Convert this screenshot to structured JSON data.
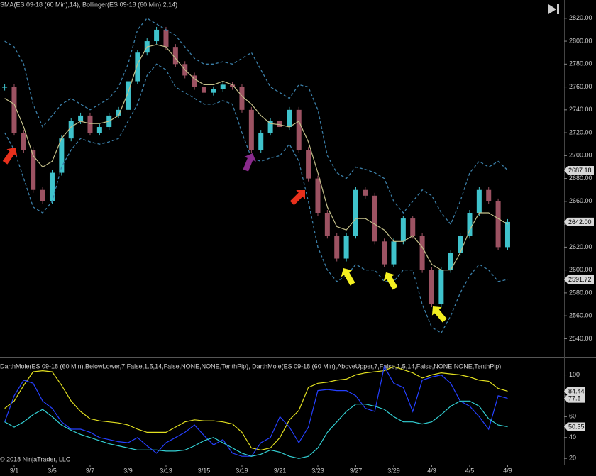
{
  "chart_data": [
    {
      "type": "candlestick",
      "title": "SMA(ES 09-18 (60 Min),14), Bollinger(ES 09-18 (60 Min),2,14)",
      "ylim": [
        2526,
        2836
      ],
      "yticks": [
        {
          "value": 2540,
          "label": "2540.00"
        },
        {
          "value": 2560,
          "label": "2560.00"
        },
        {
          "value": 2580,
          "label": "2580.00"
        },
        {
          "value": 2600,
          "label": "2600.00"
        },
        {
          "value": 2620,
          "label": "2620.00"
        },
        {
          "value": 2640,
          "label": "2640.00"
        },
        {
          "value": 2660,
          "label": "2660.00"
        },
        {
          "value": 2680,
          "label": "2680.00"
        },
        {
          "value": 2700,
          "label": "2700.00"
        },
        {
          "value": 2720,
          "label": "2720.00"
        },
        {
          "value": 2740,
          "label": "2740.00"
        },
        {
          "value": 2760,
          "label": "2760.00"
        },
        {
          "value": 2780,
          "label": "2780.00"
        },
        {
          "value": 2800,
          "label": "2800.00"
        },
        {
          "value": 2820,
          "label": "2820.00"
        }
      ],
      "series": [
        {
          "style": "candle",
          "color": "#3fc3cc",
          "down_color": "#9c5262",
          "values": [
            2760,
            2720,
            2705,
            2670,
            2660,
            2685,
            2715,
            2730,
            2735,
            2720,
            2725,
            2735,
            2740,
            2765,
            2790,
            2800,
            2810,
            2795,
            2780,
            2770,
            2760,
            2755,
            2758,
            2762,
            2760,
            2740,
            2705,
            2720,
            2730,
            2725,
            2740,
            2705,
            2680,
            2650,
            2630,
            2610,
            2630,
            2670,
            2665,
            2625,
            2605,
            2625,
            2645,
            2630,
            2600,
            2570,
            2600,
            2615,
            2630,
            2650,
            2670,
            2660,
            2620,
            2642
          ]
        },
        {
          "style": "line",
          "color": "#c4c08a",
          "values": [
            2750,
            2745,
            2725,
            2700,
            2690,
            2695,
            2715,
            2725,
            2730,
            2728,
            2728,
            2730,
            2735,
            2755,
            2780,
            2795,
            2797,
            2795,
            2785,
            2775,
            2767,
            2762,
            2762,
            2765,
            2762,
            2752,
            2745,
            2735,
            2728,
            2727,
            2725,
            2730,
            2712,
            2685,
            2655,
            2638,
            2635,
            2645,
            2645,
            2640,
            2635,
            2625,
            2625,
            2630,
            2620,
            2605,
            2600,
            2600,
            2615,
            2635,
            2650,
            2650,
            2645,
            2640
          ]
        },
        {
          "style": "dashed",
          "color": "#3b7fa8",
          "values": [
            2800,
            2795,
            2780,
            2745,
            2725,
            2735,
            2745,
            2750,
            2745,
            2740,
            2745,
            2750,
            2760,
            2780,
            2810,
            2820,
            2815,
            2810,
            2805,
            2795,
            2785,
            2780,
            2780,
            2782,
            2780,
            2785,
            2790,
            2775,
            2760,
            2755,
            2750,
            2762,
            2760,
            2740,
            2700,
            2685,
            2680,
            2690,
            2688,
            2685,
            2680,
            2660,
            2650,
            2660,
            2670,
            2665,
            2650,
            2640,
            2660,
            2685,
            2695,
            2690,
            2695,
            2687.18
          ]
        },
        {
          "style": "dashed",
          "color": "#3b7fa8",
          "values": [
            2720,
            2705,
            2680,
            2655,
            2650,
            2660,
            2690,
            2705,
            2715,
            2712,
            2710,
            2712,
            2715,
            2730,
            2745,
            2770,
            2780,
            2775,
            2760,
            2755,
            2750,
            2745,
            2745,
            2748,
            2745,
            2720,
            2698,
            2695,
            2698,
            2700,
            2710,
            2695,
            2660,
            2620,
            2600,
            2590,
            2595,
            2605,
            2600,
            2600,
            2590,
            2590,
            2600,
            2600,
            2570,
            2550,
            2545,
            2560,
            2580,
            2595,
            2605,
            2600,
            2590,
            2591.72
          ]
        }
      ],
      "price_markers": [
        {
          "value": 2687.18,
          "label": "2687.18"
        },
        {
          "value": 2642,
          "label": "2642.00"
        },
        {
          "value": 2591.72,
          "label": "2591.72"
        }
      ]
    },
    {
      "type": "line",
      "title": "DarthMole(ES 09-18 (60 Min),BelowLower,7,False,1.5,14,False,NONE,NONE,TenthPip), DarthMole(ES 09-18 (60 Min),AboveUpper,7,False,1.5,14,False,NONE,NONE,TenthPip)",
      "annotations": [
        "© 2018 NinjaTrader, LLC"
      ],
      "categories": [
        null,
        "3/1",
        null,
        null,
        null,
        "3/5",
        null,
        null,
        null,
        "3/7",
        null,
        null,
        null,
        "3/9",
        null,
        null,
        null,
        "3/13",
        null,
        null,
        null,
        "3/15",
        null,
        null,
        null,
        "3/19",
        null,
        null,
        null,
        "3/21",
        null,
        null,
        null,
        "3/23",
        null,
        null,
        null,
        "3/27",
        null,
        null,
        null,
        "3/29",
        null,
        null,
        null,
        "4/3",
        null,
        null,
        null,
        "4/5",
        null,
        null,
        null,
        "4/9"
      ],
      "ylim": [
        14,
        116
      ],
      "yticks": [
        20,
        40,
        60,
        80,
        100
      ],
      "series": [
        {
          "color": "#e2e020",
          "values": [
            68,
            75,
            90,
            103,
            104,
            103,
            90,
            75,
            65,
            58,
            56,
            55,
            54,
            52,
            48,
            45,
            45,
            45,
            50,
            55,
            57,
            56,
            56,
            55,
            53,
            45,
            30,
            28,
            30,
            40,
            57,
            66,
            88,
            92,
            93,
            95,
            96,
            100,
            102,
            103,
            104,
            108,
            105,
            102,
            97,
            100,
            102,
            101,
            100,
            98,
            95,
            94,
            87,
            84.44
          ]
        },
        {
          "color": "#2540ff",
          "values": [
            55,
            80,
            95,
            92,
            75,
            68,
            55,
            48,
            48,
            45,
            40,
            38,
            36,
            35,
            40,
            32,
            25,
            35,
            40,
            45,
            52,
            42,
            33,
            38,
            25,
            22,
            22,
            35,
            40,
            60,
            50,
            35,
            50,
            85,
            86,
            85,
            85,
            80,
            68,
            65,
            108,
            92,
            88,
            65,
            95,
            98,
            100,
            92,
            75,
            70,
            60,
            48,
            80,
            77.5
          ]
        },
        {
          "color": "#33d0d4",
          "values": [
            55,
            50,
            55,
            62,
            67,
            60,
            52,
            47,
            43,
            40,
            37,
            34,
            32,
            30,
            28,
            28,
            28,
            27,
            27,
            28,
            32,
            37,
            40,
            35,
            30,
            25,
            22,
            24,
            28,
            26,
            22,
            20,
            22,
            30,
            45,
            55,
            65,
            72,
            72,
            70,
            67,
            60,
            55,
            55,
            53,
            55,
            62,
            70,
            75,
            75,
            70,
            58,
            52,
            50.35
          ]
        }
      ]
    }
  ]
}
